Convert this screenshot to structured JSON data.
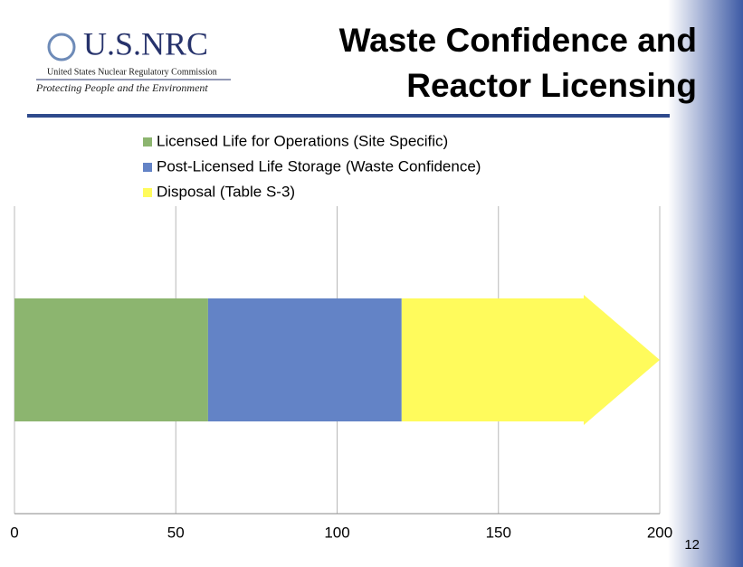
{
  "header": {
    "logo": "U.S.NRC",
    "agency": "United States Nuclear Regulatory Commission",
    "tagline": "Protecting People and the Environment",
    "title": [
      "Waste Confidence and",
      "Reactor Licensing"
    ]
  },
  "page_number": "12",
  "chart_data": {
    "type": "stacked-bar-horizontal",
    "categories": [
      null
    ],
    "series": [
      {
        "name": "Licensed Life for Operations (Site Specific)",
        "color": "#8cb56f",
        "values": [
          60
        ]
      },
      {
        "name": "Post-Licensed Life Storage (Waste Confidence)",
        "color": "#6383c6",
        "values": [
          60
        ]
      },
      {
        "name": "Disposal (Table S-3)",
        "color": "#fffb5c",
        "values": [
          80
        ]
      }
    ],
    "xlim": [
      0,
      200
    ],
    "xticks": [
      0,
      50,
      100,
      150,
      200
    ],
    "grid": true,
    "legend": "top"
  }
}
